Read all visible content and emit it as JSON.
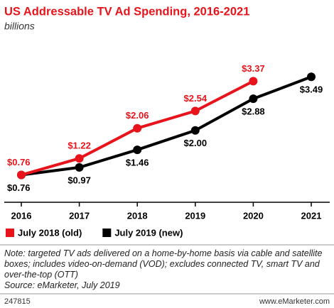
{
  "chart_data": {
    "type": "line",
    "title": "US Addressable TV Ad Spending, 2016-2021",
    "subtitle": "billions",
    "categories": [
      "2016",
      "2017",
      "2018",
      "2019",
      "2020",
      "2021"
    ],
    "series": [
      {
        "name": "July 2018 (old)",
        "color": "#e8141b",
        "values": [
          0.76,
          1.22,
          2.06,
          2.54,
          3.37,
          null
        ],
        "value_labels": [
          "$0.76",
          "$1.22",
          "$2.06",
          "$2.54",
          "$3.37",
          null
        ]
      },
      {
        "name": "July 2019 (new)",
        "color": "#000000",
        "values": [
          0.76,
          0.97,
          1.46,
          2.0,
          2.88,
          3.49
        ],
        "value_labels": [
          "$0.76",
          "$0.97",
          "$1.46",
          "$2.00",
          "$2.88",
          "$3.49"
        ]
      }
    ],
    "ylim": [
      0,
      3.8
    ],
    "note": "Note: targeted TV ads delivered on a home-by-home basis via cable and satellite boxes; includes video-on-demand (VOD); excludes connected TV, smart TV and over-the-top (OTT)",
    "source": "Source: eMarketer, July 2019",
    "chart_id": "247815",
    "site": "www.eMarketer.com"
  }
}
